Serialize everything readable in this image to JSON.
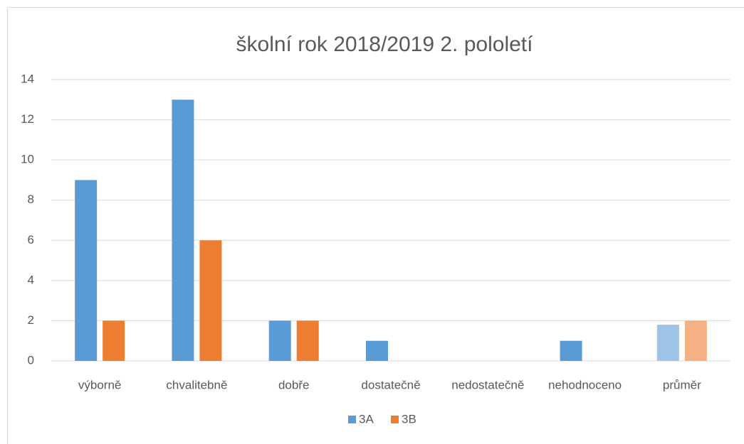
{
  "chart_data": {
    "type": "bar",
    "title": "školní rok 2018/2019 2. pololetí",
    "categories": [
      "výborně",
      "chvalitebně",
      "dobře",
      "dostatečně",
      "nedostatečně",
      "nehodnoceno",
      "průměr"
    ],
    "series": [
      {
        "name": "3A",
        "color": "#5b9bd5",
        "colors": [
          "#5b9bd5",
          "#5b9bd5",
          "#5b9bd5",
          "#5b9bd5",
          "#5b9bd5",
          "#5b9bd5",
          "#9dc3e6"
        ],
        "values": [
          9,
          13,
          2,
          1,
          0,
          1,
          1.8
        ]
      },
      {
        "name": "3B",
        "color": "#ed7d31",
        "colors": [
          "#ed7d31",
          "#ed7d31",
          "#ed7d31",
          "#ed7d31",
          "#ed7d31",
          "#ed7d31",
          "#f4b183"
        ],
        "values": [
          2,
          6,
          2,
          0,
          0,
          0,
          2
        ]
      }
    ],
    "ylim": [
      0,
      14
    ],
    "yticks": [
      0,
      2,
      4,
      6,
      8,
      10,
      12,
      14
    ],
    "grid": true,
    "legend": "bottom"
  }
}
